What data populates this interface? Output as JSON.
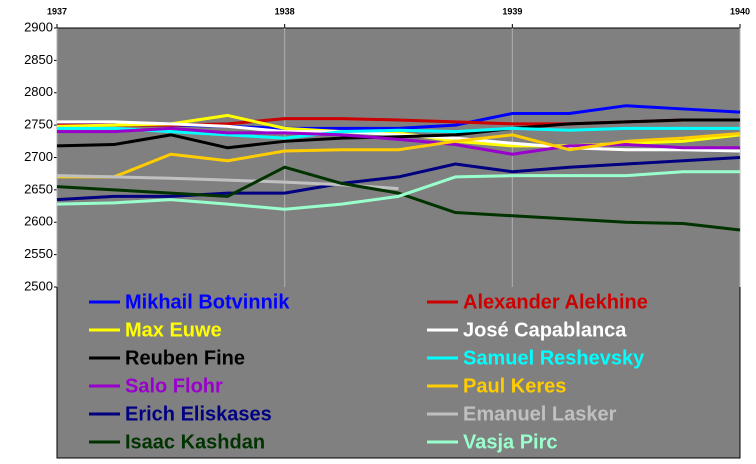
{
  "chart_data": {
    "type": "line",
    "x": [
      1937,
      1937.25,
      1937.5,
      1937.75,
      1938,
      1938.25,
      1938.5,
      1938.75,
      1939,
      1939.25,
      1939.5,
      1939.75,
      1940
    ],
    "xlim": [
      1937,
      1940
    ],
    "xticks": [
      1937,
      1938,
      1939,
      1940
    ],
    "ylim": [
      2500,
      2900
    ],
    "yticks": [
      2500,
      2550,
      2600,
      2650,
      2700,
      2750,
      2800,
      2850,
      2900
    ],
    "grid": true,
    "series": [
      {
        "name": "Mikhail Botvinnik",
        "color": "#0000ff",
        "values": [
          2755,
          2752,
          2750,
          2748,
          2745,
          2745,
          2745,
          2750,
          2768,
          2768,
          2780,
          2775,
          2770
        ]
      },
      {
        "name": "Alexander Alekhine",
        "color": "#cc0000",
        "values": [
          2750,
          2750,
          2750,
          2752,
          2760,
          2760,
          2758,
          2755,
          2752,
          2752,
          2755,
          2758,
          2758
        ]
      },
      {
        "name": "Max Euwe",
        "color": "#ffff00",
        "values": [
          2748,
          2750,
          2752,
          2765,
          2745,
          2740,
          2738,
          2725,
          2718,
          2718,
          2722,
          2725,
          2735
        ]
      },
      {
        "name": "José Capablanca",
        "color": "#ffffff",
        "values": [
          2755,
          2755,
          2752,
          2748,
          2740,
          2740,
          2735,
          2730,
          2722,
          2715,
          2712,
          2712,
          2710
        ]
      },
      {
        "name": "Reuben Fine",
        "color": "#000000",
        "values": [
          2718,
          2720,
          2735,
          2715,
          2725,
          2730,
          2732,
          2735,
          2745,
          2752,
          2755,
          2758,
          2758
        ]
      },
      {
        "name": "Samuel Reshevsky",
        "color": "#00ffff",
        "values": [
          2745,
          2745,
          2740,
          2735,
          2730,
          2740,
          2742,
          2740,
          2745,
          2742,
          2745,
          2745,
          2745
        ]
      },
      {
        "name": "Salo Flohr",
        "color": "#9900cc",
        "values": [
          2740,
          2740,
          2745,
          2738,
          2738,
          2735,
          2728,
          2720,
          2705,
          2718,
          2720,
          2715,
          2715
        ]
      },
      {
        "name": "Paul Keres",
        "color": "#ffcc00",
        "values": [
          2670,
          2670,
          2705,
          2695,
          2710,
          2712,
          2712,
          2725,
          2735,
          2712,
          2725,
          2730,
          2737
        ]
      },
      {
        "name": "Erich Eliskases",
        "color": "#000080",
        "values": [
          2635,
          2640,
          2640,
          2645,
          2645,
          2660,
          2670,
          2690,
          2678,
          2685,
          2690,
          2695,
          2700
        ]
      },
      {
        "name": "Emanuel Lasker",
        "color": "#c0c0c0",
        "values": [
          2672,
          2670,
          2668,
          2665,
          2662,
          2658,
          2652,
          null,
          null,
          null,
          null,
          null,
          null
        ]
      },
      {
        "name": "Isaac Kashdan",
        "color": "#003300",
        "values": [
          2655,
          2650,
          2645,
          2640,
          2685,
          2660,
          2645,
          2615,
          2610,
          2605,
          2600,
          2598,
          2588
        ]
      },
      {
        "name": "Vasja Pirc",
        "color": "#99ffcc",
        "values": [
          2628,
          2630,
          2635,
          2628,
          2620,
          2628,
          2640,
          2670,
          2672,
          2672,
          2672,
          2678,
          2678
        ]
      }
    ]
  }
}
